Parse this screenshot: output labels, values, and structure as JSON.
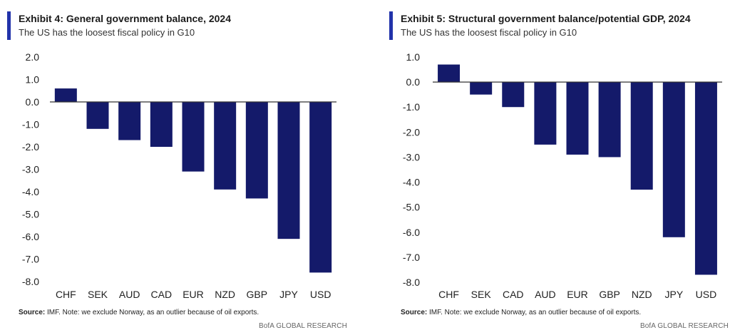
{
  "colors": {
    "bar": "#141a6a",
    "accent": "#2233aa",
    "axis": "#333333"
  },
  "chart_data": [
    {
      "type": "bar",
      "title": "Exhibit 4: General government balance, 2024",
      "subtitle": "The US has the loosest fiscal policy in G10",
      "categories": [
        "CHF",
        "SEK",
        "AUD",
        "CAD",
        "EUR",
        "NZD",
        "GBP",
        "JPY",
        "USD"
      ],
      "values": [
        0.6,
        -1.2,
        -1.7,
        -2.0,
        -3.1,
        -3.9,
        -4.3,
        -6.1,
        -7.6
      ],
      "ylim": [
        -8.0,
        2.0
      ],
      "yticks": [
        "2.0",
        "1.0",
        "0.0",
        "-1.0",
        "-2.0",
        "-3.0",
        "-4.0",
        "-5.0",
        "-6.0",
        "-7.0",
        "-8.0"
      ],
      "xlabel": "",
      "ylabel": "",
      "source_label": "Source:",
      "source_text": " IMF. Note: we exclude Norway, as an outlier because of oil exports.",
      "credit": "BofA GLOBAL RESEARCH"
    },
    {
      "type": "bar",
      "title": "Exhibit 5: Structural government balance/potential GDP, 2024",
      "subtitle": "The US has the loosest fiscal policy in G10",
      "categories": [
        "CHF",
        "SEK",
        "CAD",
        "AUD",
        "EUR",
        "GBP",
        "NZD",
        "JPY",
        "USD"
      ],
      "values": [
        0.7,
        -0.5,
        -1.0,
        -2.5,
        -2.9,
        -3.0,
        -4.3,
        -6.2,
        -7.7
      ],
      "ylim": [
        -8.0,
        1.0
      ],
      "yticks": [
        "1.0",
        "0.0",
        "-1.0",
        "-2.0",
        "-3.0",
        "-4.0",
        "-5.0",
        "-6.0",
        "-7.0",
        "-8.0"
      ],
      "xlabel": "",
      "ylabel": "",
      "source_label": "Source:",
      "source_text": " IMF. Note: we exclude Norway, as an outlier because of oil exports.",
      "credit": "BofA GLOBAL RESEARCH"
    }
  ]
}
